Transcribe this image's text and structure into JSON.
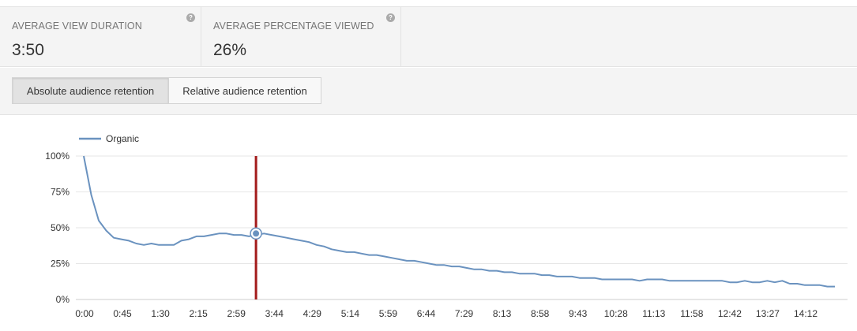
{
  "metrics": [
    {
      "label": "AVERAGE VIEW DURATION",
      "value": "3:50"
    },
    {
      "label": "AVERAGE PERCENTAGE VIEWED",
      "value": "26%"
    }
  ],
  "help_icon_glyph": "?",
  "toggles": {
    "absolute_label": "Absolute audience retention",
    "relative_label": "Relative audience retention",
    "selected": "absolute"
  },
  "chart_data": {
    "type": "line",
    "title": "",
    "xlabel": "",
    "ylabel": "",
    "ylim": [
      0,
      100
    ],
    "y_ticks": [
      "100%",
      "75%",
      "50%",
      "25%",
      "0%"
    ],
    "y_tick_values": [
      100,
      75,
      50,
      25,
      0
    ],
    "x_tick_labels": [
      "0:00",
      "0:45",
      "1:30",
      "2:15",
      "2:59",
      "3:44",
      "4:29",
      "5:14",
      "5:59",
      "6:44",
      "7:29",
      "8:13",
      "8:58",
      "9:43",
      "10:28",
      "11:13",
      "11:58",
      "12:42",
      "13:27",
      "14:12"
    ],
    "grid": true,
    "legend_position": "top-left",
    "series": [
      {
        "name": "Organic",
        "color": "#6a92bf",
        "x": [
          0,
          0.15,
          0.3,
          0.45,
          0.6,
          0.75,
          0.9,
          1.05,
          1.2,
          1.35,
          1.5,
          1.65,
          1.8,
          1.95,
          2.1,
          2.25,
          2.4,
          2.55,
          2.7,
          2.85,
          3.0,
          3.15,
          3.3,
          3.45,
          3.6,
          3.75,
          3.9,
          4.05,
          4.2,
          4.35,
          4.5,
          4.65,
          4.8,
          4.95,
          5.1,
          5.25,
          5.4,
          5.55,
          5.7,
          5.85,
          6.0,
          6.15,
          6.3,
          6.45,
          6.6,
          6.75,
          6.9,
          7.05,
          7.2,
          7.35,
          7.5,
          7.65,
          7.8,
          7.95,
          8.1,
          8.25,
          8.4,
          8.55,
          8.7,
          8.85,
          9.0,
          9.15,
          9.3,
          9.45,
          9.6,
          9.75,
          9.9,
          10.05,
          10.2,
          10.35,
          10.5,
          10.65,
          10.8,
          10.95,
          11.1,
          11.25,
          11.4,
          11.55,
          11.7,
          11.85,
          12.0,
          12.15,
          12.3,
          12.45,
          12.6,
          12.75,
          12.9,
          13.05,
          13.2,
          13.35,
          13.5,
          13.65,
          13.8,
          13.95,
          14.1,
          14.25,
          14.4,
          14.55,
          14.7,
          14.85,
          15.0
        ],
        "values": [
          100,
          73,
          55,
          48,
          43,
          42,
          41,
          39,
          38,
          39,
          38,
          38,
          38,
          41,
          42,
          44,
          44,
          45,
          46,
          46,
          45,
          45,
          44,
          45,
          46,
          45,
          44,
          43,
          42,
          41,
          40,
          38,
          37,
          35,
          34,
          33,
          33,
          32,
          31,
          31,
          30,
          29,
          28,
          27,
          27,
          26,
          25,
          24,
          24,
          23,
          23,
          22,
          21,
          21,
          20,
          20,
          19,
          19,
          18,
          18,
          18,
          17,
          17,
          16,
          16,
          16,
          15,
          15,
          15,
          14,
          14,
          14,
          14,
          14,
          13,
          14,
          14,
          14,
          13,
          13,
          13,
          13,
          13,
          13,
          13,
          13,
          12,
          12,
          13,
          12,
          12,
          13,
          12,
          13,
          11,
          11,
          10,
          10,
          10,
          9,
          9
        ],
        "marker": {
          "x": 3.44,
          "value": 46
        }
      }
    ]
  },
  "cursor": {
    "color": "#a31b1b",
    "x_label": "3:44"
  }
}
